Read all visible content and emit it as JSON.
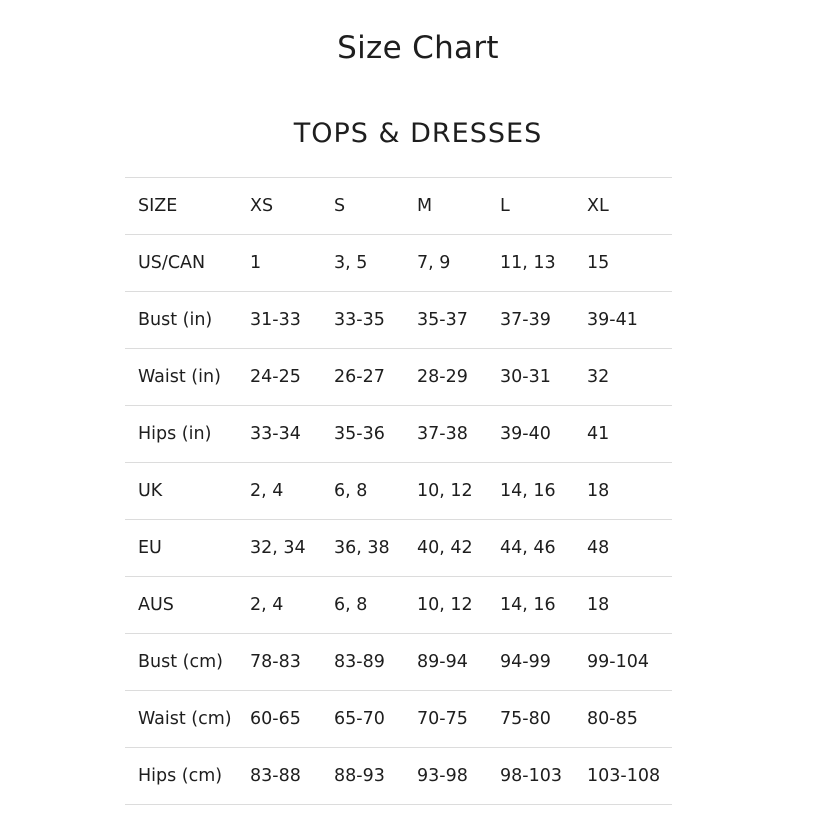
{
  "title": "Size Chart",
  "section_title": "TOPS & DRESSES",
  "table": {
    "header": [
      "SIZE",
      "XS",
      "S",
      "M",
      "L",
      "XL"
    ],
    "rows": [
      [
        "US/CAN",
        "1",
        "3, 5",
        "7, 9",
        "11, 13",
        "15"
      ],
      [
        "Bust (in)",
        "31-33",
        "33-35",
        "35-37",
        "37-39",
        "39-41"
      ],
      [
        "Waist (in)",
        "24-25",
        "26-27",
        "28-29",
        "30-31",
        "32"
      ],
      [
        "Hips (in)",
        "33-34",
        "35-36",
        "37-38",
        "39-40",
        "41"
      ],
      [
        "UK",
        "2, 4",
        "6, 8",
        "10, 12",
        "14, 16",
        "18"
      ],
      [
        "EU",
        "32, 34",
        "36, 38",
        "40, 42",
        "44, 46",
        "48"
      ],
      [
        "AUS",
        "2, 4",
        "6, 8",
        "10, 12",
        "14, 16",
        "18"
      ],
      [
        "Bust (cm)",
        "78-83",
        "83-89",
        "89-94",
        "94-99",
        "99-104"
      ],
      [
        "Waist (cm)",
        "60-65",
        "65-70",
        "70-75",
        "75-80",
        "80-85"
      ],
      [
        "Hips (cm)",
        "83-88",
        "88-93",
        "93-98",
        "98-103",
        "103-108"
      ]
    ]
  }
}
